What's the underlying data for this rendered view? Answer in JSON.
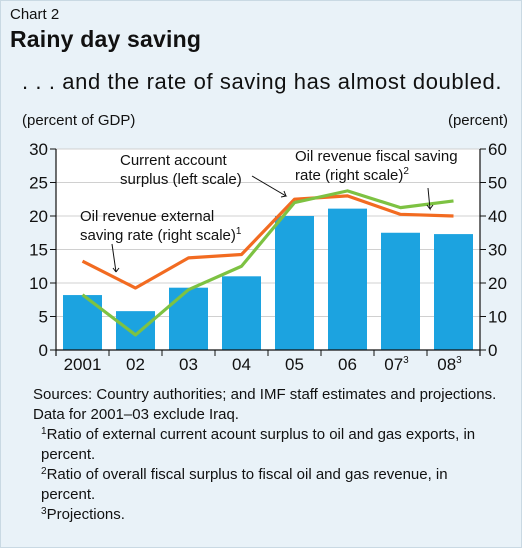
{
  "header": {
    "kicker": "Chart 2",
    "title": "Rainy day saving",
    "subtitle": ". . . and the rate of saving has almost doubled."
  },
  "units": {
    "left": "(percent of GDP)",
    "right": "(percent)"
  },
  "colors": {
    "background": "#e9f2f8",
    "plot_background": "#ffffff",
    "bars": "#1ca3e0",
    "external_line": "#f26b21",
    "fiscal_line": "#7dc242"
  },
  "chart_data": {
    "type": "bar",
    "categories": [
      "2001",
      "02",
      "03",
      "04",
      "05",
      "06",
      "07",
      "08"
    ],
    "category_superscripts": [
      "",
      "",
      "",
      "",
      "",
      "",
      "3",
      "3"
    ],
    "ylim": [
      0,
      30
    ],
    "ylim_right": [
      0,
      60
    ],
    "yticks": [
      0,
      5,
      10,
      15,
      20,
      25,
      30
    ],
    "yticks_right": [
      0,
      10,
      20,
      30,
      40,
      50,
      60
    ],
    "grid": true,
    "series": [
      {
        "name": "Current account surplus (left scale)",
        "type": "bar",
        "axis": "left",
        "values": [
          8.2,
          5.8,
          9.3,
          11.0,
          20.0,
          21.1,
          17.5,
          17.3
        ]
      },
      {
        "name": "Oil revenue external saving rate (right scale)",
        "type": "line",
        "axis": "right",
        "values": [
          26.5,
          18.5,
          27.5,
          28.5,
          45.0,
          46.0,
          40.5,
          40.0
        ]
      },
      {
        "name": "Oil revenue fiscal saving rate (right scale)",
        "type": "line",
        "axis": "right",
        "values": [
          16.5,
          4.5,
          18.0,
          25.0,
          44.0,
          47.5,
          42.5,
          44.5
        ]
      }
    ],
    "annotations": [
      {
        "lines": [
          "Current account",
          "surplus (left scale)"
        ],
        "sup": ""
      },
      {
        "lines": [
          "Oil revenue external",
          "saving rate (right scale)"
        ],
        "sup": "1"
      },
      {
        "lines": [
          "Oil revenue fiscal saving",
          "rate (right scale)"
        ],
        "sup": "2"
      }
    ]
  },
  "notes": {
    "sources": "Sources: Country authorities; and IMF staff estimates and projections.  Data for 2001–03 exclude Iraq.",
    "footnotes": [
      {
        "mark": "1",
        "text": "Ratio of external current acount surplus to oil and gas exports, in percent."
      },
      {
        "mark": "2",
        "text": "Ratio of overall fiscal surplus to fiscal oil and gas revenue, in percent."
      },
      {
        "mark": "3",
        "text": "Projections."
      }
    ]
  }
}
